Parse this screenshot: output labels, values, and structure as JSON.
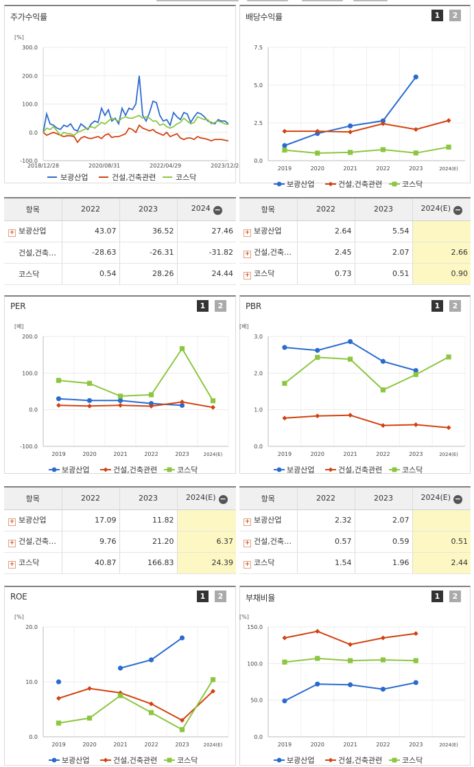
{
  "colors": {
    "company": "#2a6acf",
    "industry": "#d2410f",
    "kosdaq": "#8cc63f",
    "header": "#7f7f7f",
    "estimate": "#fdf7c3"
  },
  "tables": [
    {
      "headers": [
        "항목",
        "2022",
        "2023",
        "2024"
      ],
      "rows": [
        {
          "name": "보광산업",
          "expand": true,
          "values": [
            "43.07",
            "36.52",
            "27.46"
          ]
        },
        {
          "name": "건설,건축…",
          "expand": false,
          "values": [
            "-28.63",
            "-26.31",
            "-31.82"
          ]
        },
        {
          "name": "코스닥",
          "expand": false,
          "values": [
            "0.54",
            "28.26",
            "24.44"
          ]
        }
      ]
    },
    {
      "headers": [
        "항목",
        "2022",
        "2023",
        "2024(E)"
      ],
      "rows": [
        {
          "name": "보광산업",
          "expand": true,
          "values": [
            "2.64",
            "5.54",
            ""
          ]
        },
        {
          "name": "건설,건축…",
          "expand": true,
          "values": [
            "2.45",
            "2.07",
            "2.66"
          ]
        },
        {
          "name": "코스닥",
          "expand": true,
          "values": [
            "0.73",
            "0.51",
            "0.90"
          ]
        }
      ]
    },
    {
      "headers": [
        "항목",
        "2022",
        "2023",
        "2024(E)"
      ],
      "rows": [
        {
          "name": "보광산업",
          "expand": true,
          "values": [
            "17.09",
            "11.82",
            ""
          ]
        },
        {
          "name": "건설,건축…",
          "expand": true,
          "values": [
            "9.76",
            "21.20",
            "6.37"
          ]
        },
        {
          "name": "코스닥",
          "expand": true,
          "values": [
            "40.87",
            "166.83",
            "24.39"
          ]
        }
      ]
    },
    {
      "headers": [
        "항목",
        "2022",
        "2023",
        "2024(E)"
      ],
      "rows": [
        {
          "name": "보광산업",
          "expand": true,
          "values": [
            "2.32",
            "2.07",
            ""
          ]
        },
        {
          "name": "건설,건축…",
          "expand": true,
          "values": [
            "0.57",
            "0.59",
            "0.51"
          ]
        },
        {
          "name": "코스닥",
          "expand": true,
          "values": [
            "1.54",
            "1.96",
            "2.44"
          ]
        }
      ]
    }
  ],
  "chart_data": [
    {
      "title": "주가수익률",
      "type": "line",
      "unit": "[%]",
      "ylim": [
        -100,
        300
      ],
      "yticks": [
        "300.0",
        "200.0",
        "100.0",
        "0.0",
        "-100.0"
      ],
      "xticks": [
        "2018/12/28",
        "2020/08/31",
        "2022/04/29",
        "2023/12/28"
      ],
      "legend": [
        "보광산업",
        "건설,건축관련",
        "코스닥"
      ],
      "toggles": [],
      "series": [
        {
          "name": "보광산업",
          "values": [
            0,
            65,
            30,
            25,
            15,
            10,
            25,
            20,
            30,
            10,
            5,
            30,
            20,
            10,
            30,
            40,
            35,
            85,
            60,
            80,
            40,
            50,
            30,
            85,
            60,
            85,
            80,
            100,
            200,
            60,
            40,
            70,
            110,
            105,
            60,
            40,
            45,
            25,
            70,
            55,
            45,
            70,
            65,
            35,
            55,
            70,
            65,
            55,
            40,
            35,
            30,
            45,
            40,
            40,
            30
          ]
        },
        {
          "name": "건설,건축관련",
          "values": [
            0,
            -10,
            -5,
            0,
            -5,
            -10,
            -15,
            -12,
            -12,
            -15,
            -35,
            -20,
            -15,
            -20,
            -22,
            -18,
            -15,
            -22,
            -10,
            -5,
            -18,
            -15,
            -15,
            -10,
            -5,
            15,
            10,
            0,
            25,
            15,
            10,
            5,
            10,
            0,
            -5,
            -10,
            0,
            -15,
            -10,
            -5,
            -20,
            -25,
            -20,
            -20,
            -25,
            -15,
            -20,
            -22,
            -25,
            -30,
            -25,
            -25,
            -25,
            -28,
            -30
          ]
        },
        {
          "name": "코스닥",
          "values": [
            0,
            15,
            10,
            20,
            5,
            -10,
            0,
            -5,
            -5,
            -10,
            0,
            5,
            10,
            15,
            20,
            15,
            25,
            35,
            30,
            40,
            50,
            45,
            40,
            50,
            55,
            50,
            50,
            55,
            60,
            50,
            55,
            50,
            40,
            40,
            25,
            30,
            20,
            15,
            20,
            30,
            35,
            50,
            40,
            30,
            35,
            55,
            50,
            45,
            45,
            30,
            35,
            40,
            35,
            30,
            28
          ]
        }
      ]
    },
    {
      "title": "배당수익률",
      "type": "line",
      "unit": "",
      "ylim": [
        0,
        7.5
      ],
      "yticks": [
        "7.5",
        "5.0",
        "2.5",
        "0.0"
      ],
      "categories": [
        "2019",
        "2020",
        "2021",
        "2022",
        "2023",
        "2024(E)"
      ],
      "legend": [
        "보광산업",
        "건설,건축관련",
        "코스닥"
      ],
      "toggles": [
        "1",
        "2"
      ],
      "series": [
        {
          "name": "보광산업",
          "values": [
            1.0,
            1.8,
            2.3,
            2.64,
            5.54,
            null
          ]
        },
        {
          "name": "건설,건축관련",
          "values": [
            1.95,
            1.95,
            1.9,
            2.45,
            2.07,
            2.66
          ]
        },
        {
          "name": "코스닥",
          "values": [
            0.7,
            0.5,
            0.55,
            0.73,
            0.51,
            0.9
          ]
        }
      ]
    },
    {
      "title": "PER",
      "type": "line",
      "unit": "[배]",
      "ylim": [
        -100,
        200
      ],
      "yticks": [
        "200.0",
        "100.0",
        "0.0",
        "-100.0"
      ],
      "categories": [
        "2019",
        "2020",
        "2021",
        "2022",
        "2023",
        "2024(E)"
      ],
      "legend": [
        "보광산업",
        "건설,건축관련",
        "코스닥"
      ],
      "toggles": [
        "1",
        "2"
      ],
      "series": [
        {
          "name": "보광산업",
          "values": [
            30,
            25,
            25,
            17.09,
            11.82,
            null
          ]
        },
        {
          "name": "건설,건축관련",
          "values": [
            12,
            10,
            12,
            9.76,
            21.2,
            6.37
          ]
        },
        {
          "name": "코스닥",
          "values": [
            80,
            72,
            37,
            40.87,
            166.83,
            24.39
          ]
        }
      ]
    },
    {
      "title": "PBR",
      "type": "line",
      "unit": "[배]",
      "ylim": [
        0,
        3
      ],
      "yticks": [
        "3.0",
        "2.0",
        "1.0",
        "0.0"
      ],
      "categories": [
        "2019",
        "2020",
        "2021",
        "2022",
        "2023",
        "2024(E)"
      ],
      "legend": [
        "보광산업",
        "건설,건축관련",
        "코스닥"
      ],
      "toggles": [
        "1",
        "2"
      ],
      "series": [
        {
          "name": "보광산업",
          "values": [
            2.7,
            2.62,
            2.86,
            2.32,
            2.07,
            null
          ]
        },
        {
          "name": "건설,건축관련",
          "values": [
            0.77,
            0.83,
            0.85,
            0.57,
            0.59,
            0.51
          ]
        },
        {
          "name": "코스닥",
          "values": [
            1.72,
            2.43,
            2.38,
            1.54,
            1.96,
            2.44
          ]
        }
      ]
    },
    {
      "title": "ROE",
      "type": "line",
      "unit": "[%]",
      "ylim": [
        0,
        20
      ],
      "yticks": [
        "20.0",
        "10.0",
        "0.0"
      ],
      "categories": [
        "2019",
        "2020",
        "2021",
        "2022",
        "2023",
        "2024(E)"
      ],
      "legend": [
        "보광산업",
        "건설,건축관련",
        "코스닥"
      ],
      "toggles": [
        "1",
        "2"
      ],
      "series": [
        {
          "name": "보광산업",
          "values": [
            10,
            null,
            12.5,
            14,
            18,
            null
          ]
        },
        {
          "name": "건설,건축관련",
          "values": [
            7,
            8.8,
            8,
            6,
            3,
            8.3
          ]
        },
        {
          "name": "코스닥",
          "values": [
            2.5,
            3.4,
            7.5,
            4.4,
            1.3,
            10.4
          ]
        }
      ]
    },
    {
      "title": "부채비율",
      "type": "line",
      "unit": "[%]",
      "ylim": [
        0,
        150
      ],
      "yticks": [
        "150.0",
        "100.0",
        "50.0",
        "0.0"
      ],
      "categories": [
        "2019",
        "2020",
        "2021",
        "2022",
        "2023",
        "2024(E)"
      ],
      "legend": [
        "보광산업",
        "건설,건축관련",
        "코스닥"
      ],
      "toggles": [
        "1",
        "2"
      ],
      "series": [
        {
          "name": "보광산업",
          "values": [
            49,
            72,
            71,
            65,
            74,
            null
          ]
        },
        {
          "name": "건설,건축관련",
          "values": [
            135,
            144,
            126,
            135,
            141,
            null
          ]
        },
        {
          "name": "코스닥",
          "values": [
            102,
            107,
            104,
            105,
            104,
            null
          ]
        }
      ]
    }
  ]
}
